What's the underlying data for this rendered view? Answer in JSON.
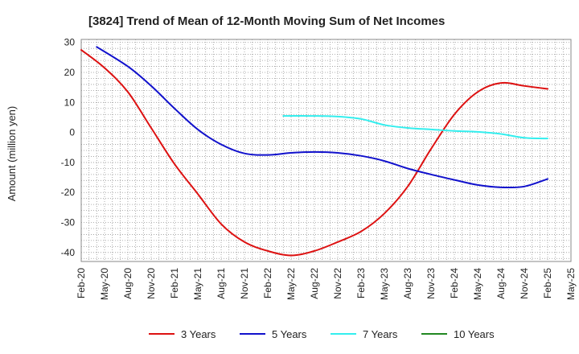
{
  "chart_data": {
    "type": "line",
    "title": "[3824]  Trend of Mean of 12-Month Moving Sum of Net Incomes",
    "xlabel": "",
    "ylabel": "Amount (million yen)",
    "ylim": [
      -43,
      31
    ],
    "yticks": [
      30,
      20,
      10,
      0,
      -10,
      -20,
      -30,
      -40
    ],
    "x_tick_labels": [
      "Feb-20",
      "May-20",
      "Aug-20",
      "Nov-20",
      "Feb-21",
      "May-21",
      "Aug-21",
      "Nov-21",
      "Feb-22",
      "May-22",
      "Aug-22",
      "Nov-22",
      "Feb-23",
      "May-23",
      "Aug-23",
      "Nov-23",
      "Feb-24",
      "May-24",
      "Aug-24",
      "Nov-24",
      "Feb-25",
      "May-25"
    ],
    "grid": true,
    "legend_position": "bottom",
    "series": [
      {
        "name": "3 Years",
        "color": "#dd1111",
        "points": [
          [
            "Feb-20",
            27.5
          ],
          [
            "May-20",
            21.5
          ],
          [
            "Aug-20",
            13.5
          ],
          [
            "Nov-20",
            1.5
          ],
          [
            "Feb-21",
            -10.5
          ],
          [
            "May-21",
            -20.5
          ],
          [
            "Aug-21",
            -30.5
          ],
          [
            "Nov-21",
            -36.5
          ],
          [
            "Feb-22",
            -39.5
          ],
          [
            "May-22",
            -41.0
          ],
          [
            "Aug-22",
            -39.5
          ],
          [
            "Nov-22",
            -36.5
          ],
          [
            "Feb-23",
            -33.0
          ],
          [
            "May-23",
            -27.0
          ],
          [
            "Aug-23",
            -18.0
          ],
          [
            "Nov-23",
            -5.5
          ],
          [
            "Feb-24",
            6.0
          ],
          [
            "May-24",
            13.5
          ],
          [
            "Aug-24",
            16.5
          ],
          [
            "Nov-24",
            15.5
          ],
          [
            "Feb-25",
            14.5
          ]
        ]
      },
      {
        "name": "5 Years",
        "color": "#1111cc",
        "points": [
          [
            "Apr-20",
            28.5
          ],
          [
            "Aug-20",
            22.0
          ],
          [
            "Nov-20",
            15.5
          ],
          [
            "Feb-21",
            8.0
          ],
          [
            "May-21",
            1.0
          ],
          [
            "Aug-21",
            -4.0
          ],
          [
            "Nov-21",
            -7.0
          ],
          [
            "Feb-22",
            -7.5
          ],
          [
            "May-22",
            -6.8
          ],
          [
            "Aug-22",
            -6.5
          ],
          [
            "Nov-22",
            -6.8
          ],
          [
            "Feb-23",
            -7.8
          ],
          [
            "May-23",
            -9.5
          ],
          [
            "Aug-23",
            -12.0
          ],
          [
            "Nov-23",
            -14.0
          ],
          [
            "Feb-24",
            -15.8
          ],
          [
            "May-24",
            -17.5
          ],
          [
            "Aug-24",
            -18.3
          ],
          [
            "Nov-24",
            -18.0
          ],
          [
            "Feb-25",
            -15.5
          ]
        ]
      },
      {
        "name": "7 Years",
        "color": "#33eeee",
        "points": [
          [
            "Apr-22",
            5.5
          ],
          [
            "Aug-22",
            5.5
          ],
          [
            "Nov-22",
            5.3
          ],
          [
            "Feb-23",
            4.5
          ],
          [
            "May-23",
            2.5
          ],
          [
            "Aug-23",
            1.5
          ],
          [
            "Nov-23",
            1.0
          ],
          [
            "Feb-24",
            0.5
          ],
          [
            "May-24",
            0.2
          ],
          [
            "Aug-24",
            -0.5
          ],
          [
            "Nov-24",
            -1.8
          ],
          [
            "Feb-25",
            -2.0
          ]
        ]
      },
      {
        "name": "10 Years",
        "color": "#228822",
        "points": []
      }
    ]
  }
}
